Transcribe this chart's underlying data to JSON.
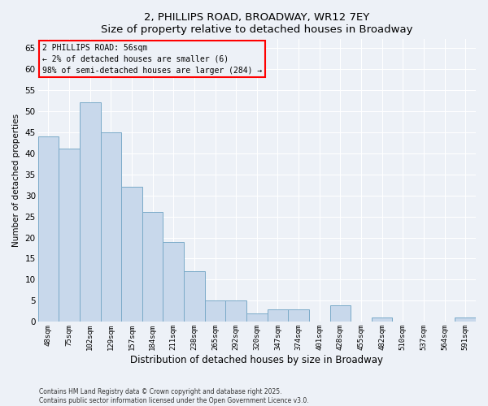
{
  "title": "2, PHILLIPS ROAD, BROADWAY, WR12 7EY",
  "subtitle": "Size of property relative to detached houses in Broadway",
  "xlabel": "Distribution of detached houses by size in Broadway",
  "ylabel": "Number of detached properties",
  "bar_color": "#c8d8eb",
  "bar_edge_color": "#7aaac8",
  "categories": [
    "48sqm",
    "75sqm",
    "102sqm",
    "129sqm",
    "157sqm",
    "184sqm",
    "211sqm",
    "238sqm",
    "265sqm",
    "292sqm",
    "320sqm",
    "347sqm",
    "374sqm",
    "401sqm",
    "428sqm",
    "455sqm",
    "482sqm",
    "510sqm",
    "537sqm",
    "564sqm",
    "591sqm"
  ],
  "values": [
    44,
    41,
    52,
    45,
    32,
    26,
    19,
    12,
    5,
    5,
    2,
    3,
    3,
    0,
    4,
    0,
    1,
    0,
    0,
    0,
    1
  ],
  "ylim": [
    0,
    67
  ],
  "yticks": [
    0,
    5,
    10,
    15,
    20,
    25,
    30,
    35,
    40,
    45,
    50,
    55,
    60,
    65
  ],
  "annotation_box_text": "2 PHILLIPS ROAD: 56sqm\n← 2% of detached houses are smaller (6)\n98% of semi-detached houses are larger (284) →",
  "bg_color": "#edf1f7",
  "grid_color": "#ffffff",
  "footer_line1": "Contains HM Land Registry data © Crown copyright and database right 2025.",
  "footer_line2": "Contains public sector information licensed under the Open Government Licence v3.0."
}
